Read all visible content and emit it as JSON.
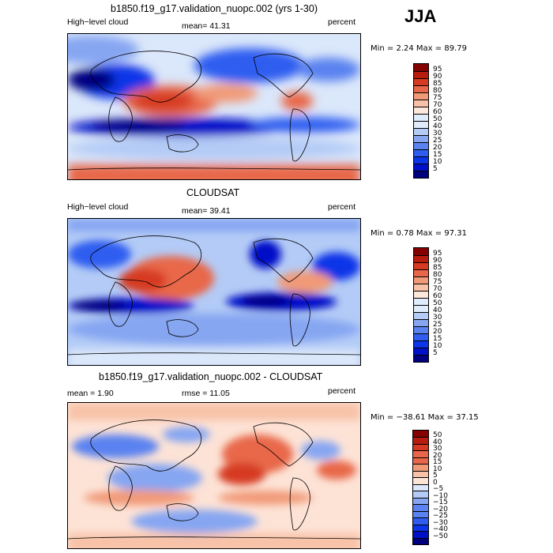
{
  "season": "JJA",
  "colors": {
    "abs_scale": [
      "#00007f",
      "#0010c8",
      "#0a35e8",
      "#2e5df0",
      "#5a82f0",
      "#86a6f2",
      "#b3cbf6",
      "#e0ebfb",
      "#fde6da",
      "#f8c2a8",
      "#f19a78",
      "#e8674a",
      "#d63a22",
      "#b71c0e",
      "#850000"
    ],
    "diff_scale": [
      "#00007f",
      "#0010c8",
      "#0a35e8",
      "#2e5df0",
      "#5a82f0",
      "#86a6f2",
      "#b3cbf6",
      "#dbe7fa",
      "#fde3d6",
      "#f8c2a8",
      "#f19a78",
      "#e8674a",
      "#d63a22",
      "#b71c0e",
      "#850000"
    ]
  },
  "panels": [
    {
      "title": "b1850.f19_g17.validation_nuopc.002 (yrs 1-30)",
      "left_label": "High−level cloud",
      "center_label": "mean=  41.31",
      "right_label": "percent",
      "minmax": "Min =    2.24  Max =   89.79",
      "colorbar_ticks": [
        "5",
        "10",
        "15",
        "20",
        "25",
        "30",
        "40",
        "50",
        "60",
        "70",
        "75",
        "80",
        "85",
        "90",
        "95"
      ]
    },
    {
      "title": "CLOUDSAT",
      "left_label": "High−level cloud",
      "center_label": "mean=  39.41",
      "right_label": "percent",
      "minmax": "Min =    0.78  Max =   97.31",
      "colorbar_ticks": [
        "5",
        "10",
        "15",
        "20",
        "25",
        "30",
        "40",
        "50",
        "60",
        "70",
        "75",
        "80",
        "85",
        "90",
        "95"
      ]
    },
    {
      "title": "b1850.f19_g17.validation_nuopc.002 - CLOUDSAT",
      "left_label": "mean =    1.90",
      "center_label": "rmse =   11.05",
      "right_label": "percent",
      "minmax": "Min = −38.61  Max =   37.15",
      "colorbar_ticks": [
        "−50",
        "−40",
        "−30",
        "−25",
        "−20",
        "−15",
        "−10",
        "−5",
        "0",
        "5",
        "10",
        "15",
        "20",
        "30",
        "40",
        "50"
      ]
    }
  ]
}
